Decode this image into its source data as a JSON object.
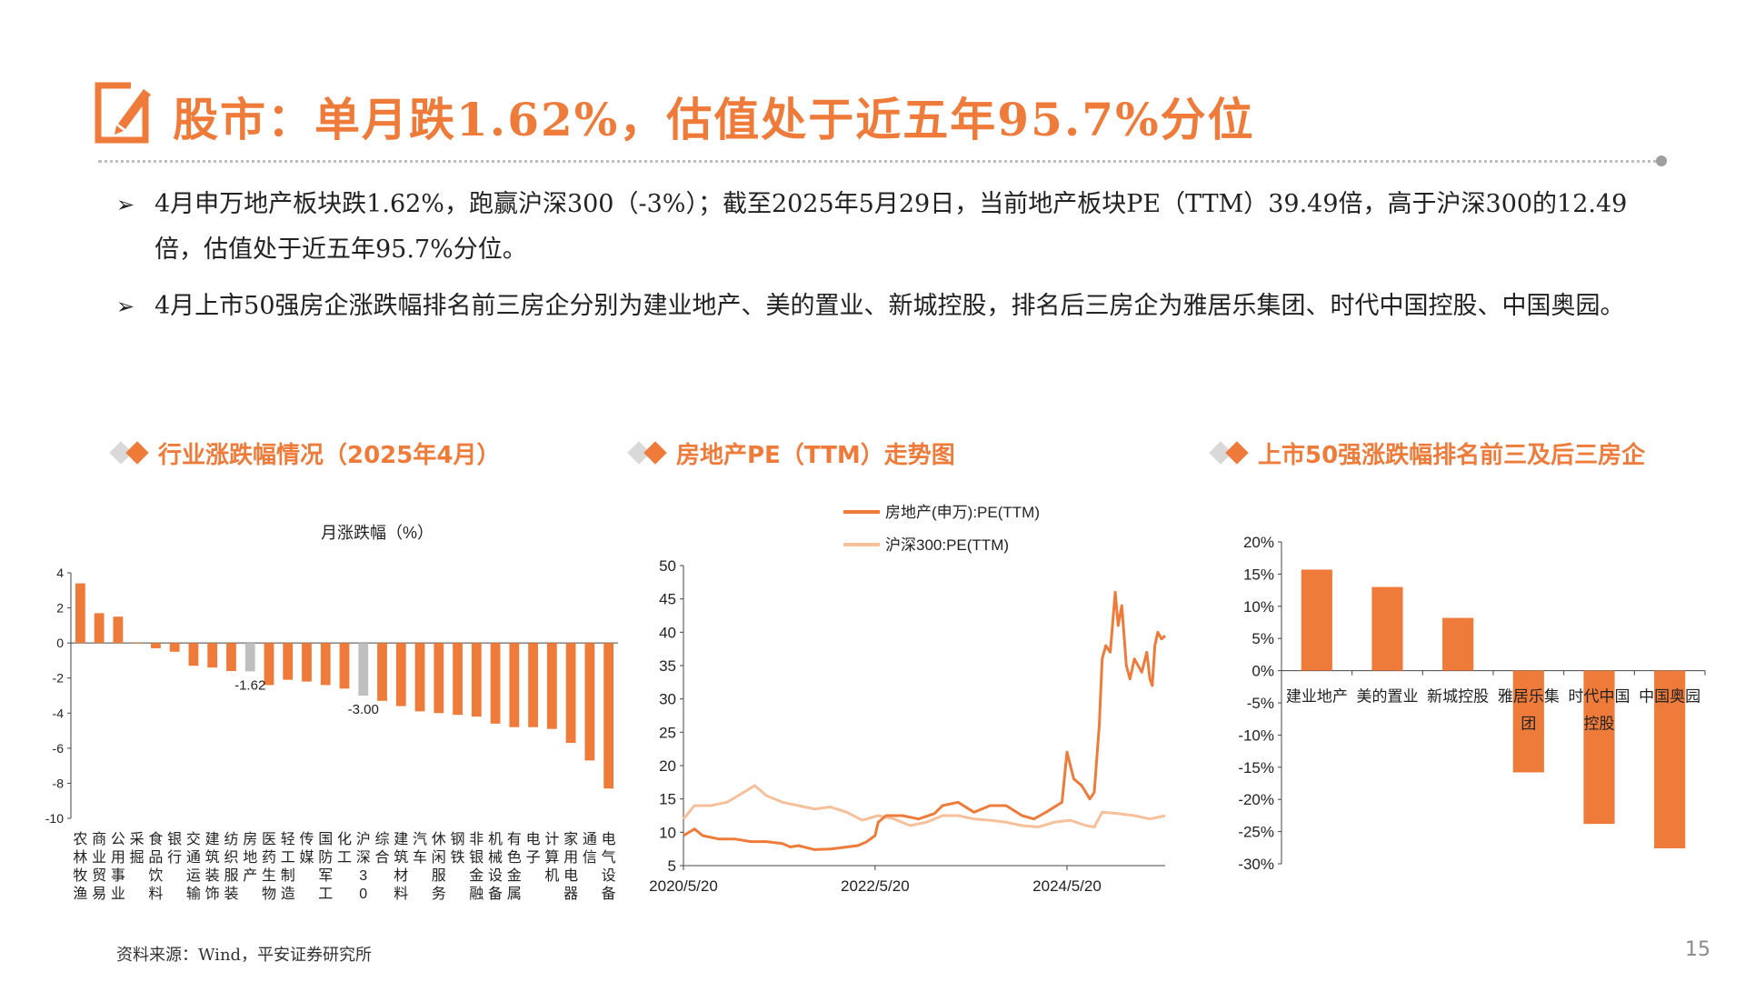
{
  "header": {
    "title": "股市：单月跌1.62%，估值处于近五年95.7%分位"
  },
  "bullets": [
    {
      "text": "4月申万地产板块跌1.62%，跑赢沪深300（-3%）；截至2025年5月29日，当前地产板块PE（TTM）39.49倍，高于沪深300的12.49倍，估值处于近五年95.7%分位。"
    },
    {
      "text": "4月上市50强房企涨跌幅排名前三房企分别为建业地产、美的置业、新城控股，排名后三房企为雅居乐集团、时代中国控股、中国奥园。"
    }
  ],
  "sections": {
    "industry": {
      "title": "行业涨跌幅情况（2025年4月）"
    },
    "pe": {
      "title": "房地产PE（TTM）走势图"
    },
    "top50": {
      "title": "上市50强涨跌幅排名前三及后三房企"
    }
  },
  "colors": {
    "accent": "#ef7b3a",
    "series2": "#f6c09a",
    "gray": "#bfbfbf"
  },
  "chart_data": [
    {
      "type": "bar",
      "title": "月涨跌幅（%）",
      "ylim": [
        -10,
        4
      ],
      "yticks": [
        4,
        2,
        0,
        -2,
        -4,
        -6,
        -8,
        -10
      ],
      "categories": [
        "农林牧渔",
        "商业贸易",
        "公用事业",
        "采掘",
        "食品饮料",
        "银行",
        "交通运输",
        "建筑装饰",
        "纺织服装",
        "房地产",
        "医药生物",
        "轻工制造",
        "传媒",
        "国防军工",
        "化工",
        "沪深300",
        "综合",
        "建筑材料",
        "汽车",
        "休闲服务",
        "钢铁",
        "非银金融",
        "机械设备",
        "有色金属",
        "电子",
        "计算机",
        "家用电器",
        "通信",
        "电气设备"
      ],
      "values": [
        3.4,
        1.7,
        1.5,
        0.0,
        -0.3,
        -0.5,
        -1.3,
        -1.4,
        -1.6,
        -1.62,
        -2.4,
        -2.1,
        -2.2,
        -2.4,
        -2.6,
        -3.0,
        -3.3,
        -3.6,
        -3.9,
        -4.0,
        -4.1,
        -4.2,
        -4.6,
        -4.8,
        -4.8,
        -4.9,
        -5.7,
        -6.7,
        -8.3
      ],
      "highlight": [
        "房地产",
        "沪深300"
      ],
      "data_labels": [
        {
          "category": "房地产",
          "label": "-1.62"
        },
        {
          "category": "沪深300",
          "label": "-3.00"
        }
      ],
      "grid": false
    },
    {
      "type": "line",
      "ylim": [
        5,
        50
      ],
      "yticks": [
        50,
        45,
        40,
        35,
        30,
        25,
        20,
        15,
        10,
        5
      ],
      "xlim": [
        "2020-05-20",
        "2025-05-29"
      ],
      "xticks": [
        "2020/5/20",
        "2022/5/20",
        "2024/5/20"
      ],
      "legend": "top",
      "grid": false,
      "series": [
        {
          "name": "房地产(申万):PE(TTM)",
          "points": [
            [
              "2020-05-20",
              9.5
            ],
            [
              "2020-07-01",
              10.5
            ],
            [
              "2020-08-01",
              9.5
            ],
            [
              "2020-10-01",
              9.0
            ],
            [
              "2020-12-01",
              9.0
            ],
            [
              "2021-02-01",
              8.6
            ],
            [
              "2021-04-01",
              8.6
            ],
            [
              "2021-06-01",
              8.3
            ],
            [
              "2021-07-01",
              7.8
            ],
            [
              "2021-08-01",
              8.0
            ],
            [
              "2021-10-01",
              7.4
            ],
            [
              "2021-12-01",
              7.5
            ],
            [
              "2022-02-01",
              7.8
            ],
            [
              "2022-03-15",
              8.0
            ],
            [
              "2022-04-15",
              8.5
            ],
            [
              "2022-05-20",
              9.5
            ],
            [
              "2022-06-01",
              11.5
            ],
            [
              "2022-07-01",
              12.5
            ],
            [
              "2022-09-01",
              12.5
            ],
            [
              "2022-11-01",
              12.0
            ],
            [
              "2023-01-01",
              12.8
            ],
            [
              "2023-02-01",
              14.0
            ],
            [
              "2023-04-01",
              14.5
            ],
            [
              "2023-06-01",
              13.0
            ],
            [
              "2023-08-01",
              14.0
            ],
            [
              "2023-10-01",
              14.0
            ],
            [
              "2023-12-01",
              12.5
            ],
            [
              "2024-01-15",
              12.0
            ],
            [
              "2024-03-01",
              13.0
            ],
            [
              "2024-05-01",
              14.5
            ],
            [
              "2024-05-20",
              22.0
            ],
            [
              "2024-06-15",
              18.0
            ],
            [
              "2024-07-15",
              17.0
            ],
            [
              "2024-08-15",
              15.0
            ],
            [
              "2024-09-01",
              16.0
            ],
            [
              "2024-09-20",
              26.0
            ],
            [
              "2024-10-01",
              36.0
            ],
            [
              "2024-10-15",
              38.0
            ],
            [
              "2024-11-01",
              37.0
            ],
            [
              "2024-11-20",
              46.0
            ],
            [
              "2024-12-01",
              41.0
            ],
            [
              "2024-12-15",
              44.0
            ],
            [
              "2025-01-01",
              35.0
            ],
            [
              "2025-01-15",
              33.0
            ],
            [
              "2025-02-01",
              36.0
            ],
            [
              "2025-03-01",
              34.0
            ],
            [
              "2025-03-20",
              37.0
            ],
            [
              "2025-04-01",
              33.0
            ],
            [
              "2025-04-10",
              32.0
            ],
            [
              "2025-04-20",
              38.0
            ],
            [
              "2025-05-01",
              40.0
            ],
            [
              "2025-05-15",
              39.0
            ],
            [
              "2025-05-29",
              39.49
            ]
          ]
        },
        {
          "name": "沪深300:PE(TTM)",
          "points": [
            [
              "2020-05-20",
              12.0
            ],
            [
              "2020-07-01",
              14.0
            ],
            [
              "2020-09-01",
              14.0
            ],
            [
              "2020-11-01",
              14.5
            ],
            [
              "2020-12-15",
              15.5
            ],
            [
              "2021-02-15",
              17.0
            ],
            [
              "2021-04-01",
              15.5
            ],
            [
              "2021-06-01",
              14.5
            ],
            [
              "2021-08-01",
              14.0
            ],
            [
              "2021-10-01",
              13.5
            ],
            [
              "2021-12-01",
              13.8
            ],
            [
              "2022-02-01",
              13.0
            ],
            [
              "2022-04-01",
              11.8
            ],
            [
              "2022-06-01",
              12.5
            ],
            [
              "2022-08-01",
              12.0
            ],
            [
              "2022-10-01",
              11.0
            ],
            [
              "2022-12-01",
              11.5
            ],
            [
              "2023-02-01",
              12.5
            ],
            [
              "2023-04-01",
              12.5
            ],
            [
              "2023-06-01",
              12.0
            ],
            [
              "2023-08-01",
              11.8
            ],
            [
              "2023-10-01",
              11.5
            ],
            [
              "2023-12-01",
              11.0
            ],
            [
              "2024-02-01",
              10.8
            ],
            [
              "2024-04-01",
              11.5
            ],
            [
              "2024-06-01",
              11.8
            ],
            [
              "2024-08-01",
              11.0
            ],
            [
              "2024-09-01",
              10.8
            ],
            [
              "2024-10-01",
              13.0
            ],
            [
              "2024-12-01",
              12.8
            ],
            [
              "2025-02-01",
              12.5
            ],
            [
              "2025-04-01",
              12.0
            ],
            [
              "2025-05-29",
              12.49
            ]
          ]
        }
      ]
    },
    {
      "type": "bar",
      "ylim": [
        -30,
        20
      ],
      "yticks": [
        "20%",
        "15%",
        "10%",
        "5%",
        "0%",
        "-5%",
        "-10%",
        "-15%",
        "-20%",
        "-25%",
        "-30%"
      ],
      "categories": [
        "建业地产",
        "美的置业",
        "新城控股",
        "雅居乐集团",
        "时代中国控股",
        "中国奥园"
      ],
      "values": [
        15.7,
        13.0,
        8.2,
        -15.8,
        -23.8,
        -27.6
      ],
      "grid": false
    }
  ],
  "footer": {
    "source": "资料来源：Wind，平安证券研究所",
    "page": "15"
  }
}
